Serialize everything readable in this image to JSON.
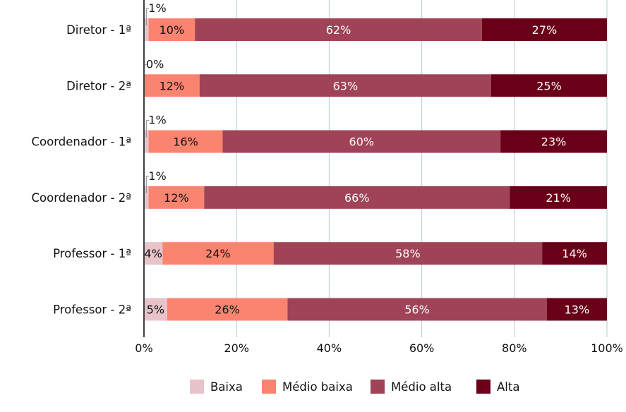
{
  "chart_data": {
    "type": "bar",
    "orientation": "horizontal",
    "stacked": true,
    "percent": true,
    "categories": [
      "Diretor - 1ª",
      "Diretor - 2ª",
      "Coordenador - 1ª",
      "Coordenador - 2ª",
      "Professor - 1ª",
      "Professor - 2ª"
    ],
    "series": [
      {
        "name": "Baixa",
        "color": "#e8c3ca",
        "label_color": "#111111",
        "values": [
          1,
          0,
          1,
          1,
          4,
          5
        ]
      },
      {
        "name": "Médio baixa",
        "color": "#fa8470",
        "label_color": "#111111",
        "values": [
          10,
          12,
          16,
          12,
          24,
          26
        ]
      },
      {
        "name": "Médio alta",
        "color": "#a04356",
        "label_color": "#ffffff",
        "values": [
          62,
          63,
          60,
          66,
          58,
          56
        ]
      },
      {
        "name": "Alta",
        "color": "#6a0018",
        "label_color": "#ffffff",
        "values": [
          27,
          25,
          23,
          21,
          14,
          13
        ]
      }
    ],
    "xlim": [
      0,
      100
    ],
    "xticks": [
      "0%",
      "20%",
      "40%",
      "60%",
      "80%",
      "100%"
    ],
    "grid": true,
    "legend_position": "bottom",
    "title": "",
    "xlabel": "",
    "ylabel": ""
  }
}
